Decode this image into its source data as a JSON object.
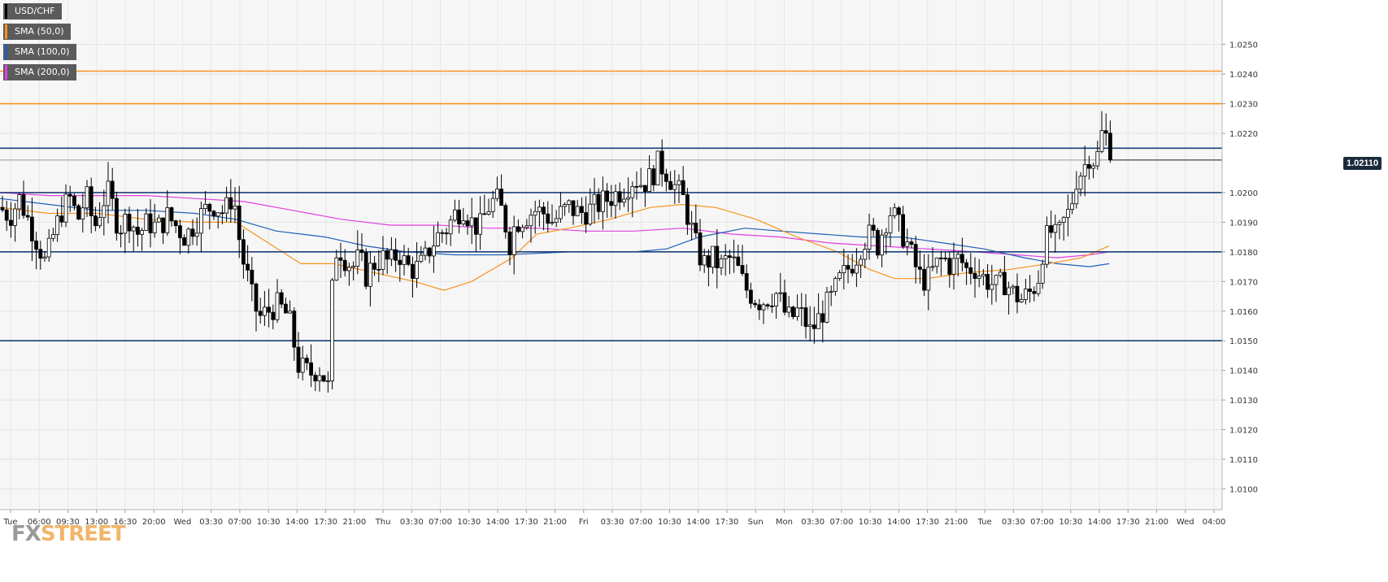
{
  "chart_data": {
    "type": "candlestick",
    "symbol": "USD/CHF",
    "legend": [
      {
        "label": "USD/CHF",
        "color": "#000000"
      },
      {
        "label": "SMA (50,0)",
        "color": "#f7931e"
      },
      {
        "label": "SMA (100,0)",
        "color": "#1f5fb4"
      },
      {
        "label": "SMA (200,0)",
        "color": "#e040e0"
      }
    ],
    "last_price_label": "1.02110",
    "last_price": 1.0211,
    "y_axis": {
      "ylim": [
        1.0093,
        1.0265
      ],
      "ticks": [
        "1.0250",
        "1.0240",
        "1.0230",
        "1.0220",
        "1.0200",
        "1.0190",
        "1.0180",
        "1.0170",
        "1.0160",
        "1.0150",
        "1.0140",
        "1.0130",
        "1.0120",
        "1.0110",
        "1.0100"
      ]
    },
    "x_axis": {
      "ticks": [
        "Tue",
        "06:00",
        "09:30",
        "13:00",
        "16:30",
        "20:00",
        "Wed",
        "03:30",
        "07:00",
        "10:30",
        "14:00",
        "17:30",
        "21:00",
        "Thu",
        "03:30",
        "07:00",
        "10:30",
        "14:00",
        "17:30",
        "21:00",
        "Fri",
        "03:30",
        "07:00",
        "10:30",
        "14:00",
        "17:30",
        "Sun",
        "Mon",
        "03:30",
        "07:00",
        "10:30",
        "14:00",
        "17:30",
        "21:00",
        "Tue",
        "03:30",
        "07:00",
        "10:30",
        "14:00",
        "17:30",
        "21:00",
        "Wed",
        "04:00"
      ]
    },
    "horizontal_levels": [
      {
        "value": 1.0241,
        "color": "#f7931e"
      },
      {
        "value": 1.023,
        "color": "#f7931e"
      },
      {
        "value": 1.0215,
        "color": "#1b3f7a"
      },
      {
        "value": 1.02,
        "color": "#1b3f7a"
      },
      {
        "value": 1.018,
        "color": "#1b3f7a"
      },
      {
        "value": 1.015,
        "color": "#1b3f7a"
      },
      {
        "value": 1.0211,
        "color": "#8e97a4"
      }
    ],
    "price_path": [
      [
        0,
        1.0195
      ],
      [
        12,
        1.0192
      ],
      [
        24,
        1.0198
      ],
      [
        36,
        1.019
      ],
      [
        48,
        1.0182
      ],
      [
        56,
        1.0176
      ],
      [
        66,
        1.0186
      ],
      [
        76,
        1.0194
      ],
      [
        86,
        1.0198
      ],
      [
        96,
        1.0191
      ],
      [
        106,
        1.0199
      ],
      [
        116,
        1.0188
      ],
      [
        126,
        1.0197
      ],
      [
        134,
        1.02
      ],
      [
        146,
        1.0188
      ],
      [
        158,
        1.0192
      ],
      [
        170,
        1.0186
      ],
      [
        182,
        1.019
      ],
      [
        194,
        1.0188
      ],
      [
        206,
        1.0192
      ],
      [
        216,
        1.0189
      ],
      [
        228,
        1.0185
      ],
      [
        240,
        1.019
      ],
      [
        252,
        1.0194
      ],
      [
        264,
        1.0196
      ],
      [
        276,
        1.0193
      ],
      [
        284,
        1.0198
      ],
      [
        290,
        1.0195
      ],
      [
        296,
        1.018
      ],
      [
        304,
        1.0172
      ],
      [
        312,
        1.0162
      ],
      [
        320,
        1.0158
      ],
      [
        330,
        1.016
      ],
      [
        340,
        1.0162
      ],
      [
        350,
        1.016
      ],
      [
        358,
        1.0155
      ],
      [
        366,
        1.0142
      ],
      [
        374,
        1.014
      ],
      [
        382,
        1.0139
      ],
      [
        392,
        1.0141
      ],
      [
        400,
        1.0137
      ],
      [
        405,
        1.0133
      ],
      [
        410,
        1.018
      ],
      [
        418,
        1.0181
      ],
      [
        426,
        1.0177
      ],
      [
        434,
        1.0175
      ],
      [
        442,
        1.0178
      ],
      [
        450,
        1.0172
      ],
      [
        460,
        1.0176
      ],
      [
        470,
        1.0178
      ],
      [
        480,
        1.0176
      ],
      [
        490,
        1.018
      ],
      [
        500,
        1.0175
      ],
      [
        510,
        1.0174
      ],
      [
        520,
        1.0176
      ],
      [
        530,
        1.0182
      ],
      [
        540,
        1.0186
      ],
      [
        550,
        1.0188
      ],
      [
        560,
        1.0193
      ],
      [
        570,
        1.0195
      ],
      [
        580,
        1.019
      ],
      [
        590,
        1.0188
      ],
      [
        600,
        1.0195
      ],
      [
        610,
        1.0198
      ],
      [
        620,
        1.0192
      ],
      [
        626,
        1.0182
      ],
      [
        634,
        1.019
      ],
      [
        646,
        1.0192
      ],
      [
        658,
        1.0194
      ],
      [
        670,
        1.0193
      ],
      [
        680,
        1.019
      ],
      [
        690,
        1.0193
      ],
      [
        700,
        1.0195
      ],
      [
        712,
        1.0193
      ],
      [
        724,
        1.0194
      ],
      [
        736,
        1.0196
      ],
      [
        748,
        1.0198
      ],
      [
        760,
        1.02
      ],
      [
        770,
        1.0202
      ],
      [
        780,
        1.0205
      ],
      [
        790,
        1.0203
      ],
      [
        800,
        1.0205
      ],
      [
        810,
        1.021
      ],
      [
        820,
        1.0207
      ],
      [
        830,
        1.0202
      ],
      [
        840,
        1.0198
      ],
      [
        846,
        1.0192
      ],
      [
        852,
        1.0186
      ],
      [
        858,
        1.018
      ],
      [
        866,
        1.0176
      ],
      [
        876,
        1.0178
      ],
      [
        886,
        1.0175
      ],
      [
        896,
        1.0178
      ],
      [
        906,
        1.0175
      ],
      [
        916,
        1.0168
      ],
      [
        926,
        1.0165
      ],
      [
        936,
        1.0163
      ],
      [
        946,
        1.0165
      ],
      [
        956,
        1.0166
      ],
      [
        964,
        1.016
      ],
      [
        972,
        1.0157
      ],
      [
        980,
        1.016
      ],
      [
        988,
        1.0158
      ],
      [
        996,
        1.0153
      ],
      [
        1004,
        1.0156
      ],
      [
        1012,
        1.016
      ],
      [
        1022,
        1.0164
      ],
      [
        1032,
        1.017
      ],
      [
        1042,
        1.0174
      ],
      [
        1052,
        1.0178
      ],
      [
        1062,
        1.0184
      ],
      [
        1072,
        1.0186
      ],
      [
        1080,
        1.0182
      ],
      [
        1088,
        1.019
      ],
      [
        1096,
        1.0194
      ],
      [
        1106,
        1.0188
      ],
      [
        1114,
        1.0184
      ],
      [
        1122,
        1.0178
      ],
      [
        1130,
        1.0172
      ],
      [
        1140,
        1.017
      ],
      [
        1150,
        1.0175
      ],
      [
        1160,
        1.0178
      ],
      [
        1170,
        1.0175
      ],
      [
        1180,
        1.0178
      ],
      [
        1188,
        1.0174
      ],
      [
        1198,
        1.0175
      ],
      [
        1206,
        1.0172
      ],
      [
        1216,
        1.017
      ],
      [
        1226,
        1.0168
      ],
      [
        1236,
        1.017
      ],
      [
        1246,
        1.0166
      ],
      [
        1256,
        1.0164
      ],
      [
        1266,
        1.0166
      ],
      [
        1276,
        1.017
      ],
      [
        1284,
        1.0183
      ],
      [
        1292,
        1.0187
      ],
      [
        1300,
        1.0184
      ],
      [
        1308,
        1.019
      ],
      [
        1316,
        1.0194
      ],
      [
        1324,
        1.0205
      ],
      [
        1332,
        1.0208
      ],
      [
        1340,
        1.0213
      ],
      [
        1348,
        1.021
      ],
      [
        1356,
        1.0221
      ],
      [
        1364,
        1.0217
      ],
      [
        1368,
        1.0211
      ]
    ],
    "sma50": [
      [
        0,
        1.0195
      ],
      [
        60,
        1.0193
      ],
      [
        120,
        1.0193
      ],
      [
        180,
        1.0191
      ],
      [
        240,
        1.019
      ],
      [
        290,
        1.019
      ],
      [
        330,
        1.0183
      ],
      [
        370,
        1.0176
      ],
      [
        410,
        1.0176
      ],
      [
        460,
        1.0173
      ],
      [
        510,
        1.017
      ],
      [
        546,
        1.0167
      ],
      [
        580,
        1.017
      ],
      [
        630,
        1.0178
      ],
      [
        660,
        1.0186
      ],
      [
        700,
        1.0188
      ],
      [
        750,
        1.0191
      ],
      [
        800,
        1.0195
      ],
      [
        840,
        1.0196
      ],
      [
        880,
        1.0195
      ],
      [
        930,
        1.0191
      ],
      [
        980,
        1.0185
      ],
      [
        1030,
        1.018
      ],
      [
        1070,
        1.0174
      ],
      [
        1100,
        1.0171
      ],
      [
        1140,
        1.0171
      ],
      [
        1190,
        1.0173
      ],
      [
        1240,
        1.0174
      ],
      [
        1290,
        1.0176
      ],
      [
        1330,
        1.0178
      ],
      [
        1364,
        1.0182
      ]
    ],
    "sma100": [
      [
        0,
        1.0198
      ],
      [
        60,
        1.0196
      ],
      [
        120,
        1.0194
      ],
      [
        180,
        1.0194
      ],
      [
        240,
        1.0193
      ],
      [
        290,
        1.0191
      ],
      [
        340,
        1.0187
      ],
      [
        400,
        1.0185
      ],
      [
        450,
        1.0182
      ],
      [
        500,
        1.018
      ],
      [
        560,
        1.0179
      ],
      [
        620,
        1.0179
      ],
      [
        700,
        1.018
      ],
      [
        780,
        1.018
      ],
      [
        820,
        1.0181
      ],
      [
        860,
        1.0185
      ],
      [
        916,
        1.0188
      ],
      [
        960,
        1.0187
      ],
      [
        1010,
        1.0186
      ],
      [
        1060,
        1.0185
      ],
      [
        1110,
        1.0185
      ],
      [
        1160,
        1.0183
      ],
      [
        1210,
        1.0181
      ],
      [
        1260,
        1.0178
      ],
      [
        1300,
        1.0176
      ],
      [
        1340,
        1.0175
      ],
      [
        1364,
        1.0176
      ]
    ],
    "sma200": [
      [
        0,
        1.02
      ],
      [
        60,
        1.0199
      ],
      [
        120,
        1.0199
      ],
      [
        180,
        1.0199
      ],
      [
        240,
        1.0198
      ],
      [
        300,
        1.0197
      ],
      [
        360,
        1.0194
      ],
      [
        420,
        1.0191
      ],
      [
        480,
        1.0189
      ],
      [
        540,
        1.0189
      ],
      [
        600,
        1.0188
      ],
      [
        660,
        1.0188
      ],
      [
        720,
        1.0187
      ],
      [
        780,
        1.0187
      ],
      [
        840,
        1.0188
      ],
      [
        900,
        1.0186
      ],
      [
        960,
        1.0185
      ],
      [
        1020,
        1.0183
      ],
      [
        1080,
        1.0182
      ],
      [
        1140,
        1.0181
      ],
      [
        1200,
        1.018
      ],
      [
        1250,
        1.0179
      ],
      [
        1300,
        1.0178
      ],
      [
        1340,
        1.0179
      ],
      [
        1364,
        1.018
      ]
    ]
  },
  "watermark": {
    "part1": "FX",
    "part2": "STREET"
  }
}
